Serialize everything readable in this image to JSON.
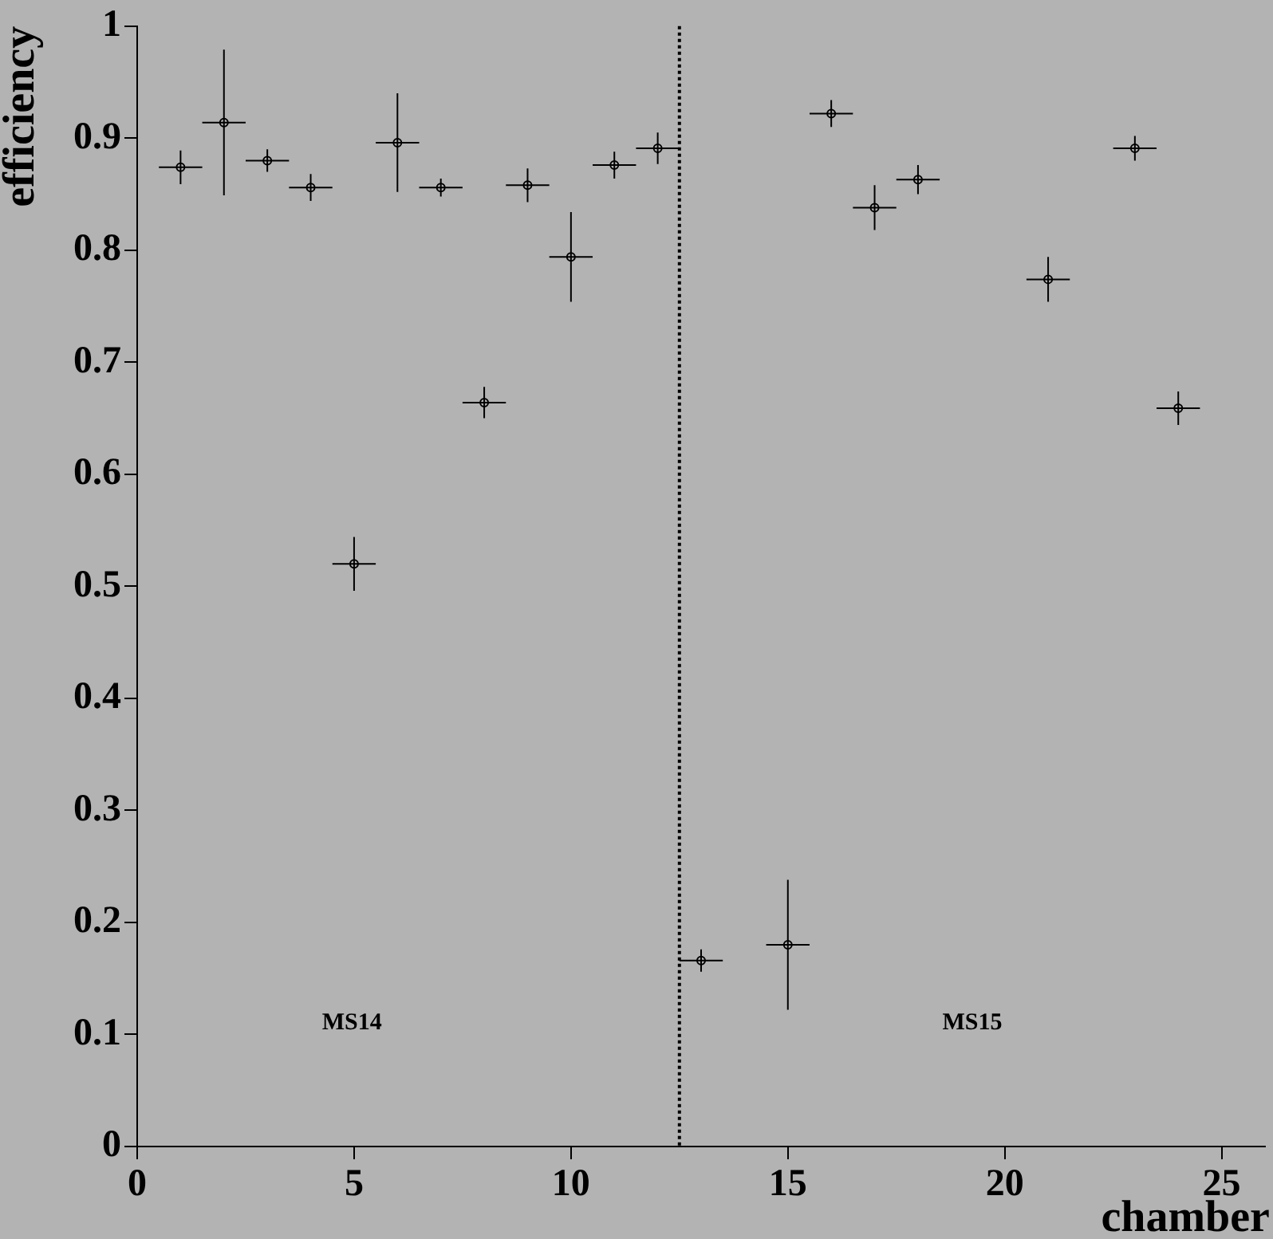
{
  "chart_data": {
    "type": "scatter",
    "xlabel": "chamber",
    "ylabel": "efficiency",
    "x": [
      1,
      2,
      3,
      4,
      5,
      6,
      7,
      8,
      9,
      10,
      11,
      12,
      13,
      15,
      16,
      17,
      18,
      21,
      23,
      24
    ],
    "values": [
      0.874,
      0.914,
      0.88,
      0.856,
      0.52,
      0.896,
      0.856,
      0.664,
      0.858,
      0.794,
      0.876,
      0.891,
      0.166,
      0.18,
      0.922,
      0.838,
      0.863,
      0.774,
      0.891,
      0.659
    ],
    "errors": [
      0.015,
      0.065,
      0.01,
      0.012,
      0.024,
      0.044,
      0.008,
      0.014,
      0.015,
      0.04,
      0.012,
      0.014,
      0.01,
      0.058,
      0.012,
      0.02,
      0.013,
      0.02,
      0.011,
      0.015
    ],
    "xerrors": [
      0.5,
      0.5,
      0.5,
      0.5,
      0.5,
      0.5,
      0.5,
      0.5,
      0.5,
      0.5,
      0.5,
      0.5,
      0.5,
      0.5,
      0.5,
      0.5,
      0.5,
      0.5,
      0.5,
      0.5
    ],
    "color": "#000000",
    "marker": "circle",
    "xlim": [
      0,
      26
    ],
    "xticks": [
      0,
      5,
      10,
      15,
      20,
      25
    ],
    "ylim": [
      0,
      1
    ],
    "yticks": [
      0,
      0.1,
      0.2,
      0.3,
      0.4,
      0.5,
      0.6,
      0.7,
      0.8,
      0.9,
      1
    ],
    "ref_lines": [
      {
        "axis": "x",
        "value": 12.5,
        "line_style": "dotted",
        "color": "#000000"
      }
    ],
    "annotations": [
      "MS14",
      "MS15"
    ],
    "grid": false,
    "legend": false
  }
}
